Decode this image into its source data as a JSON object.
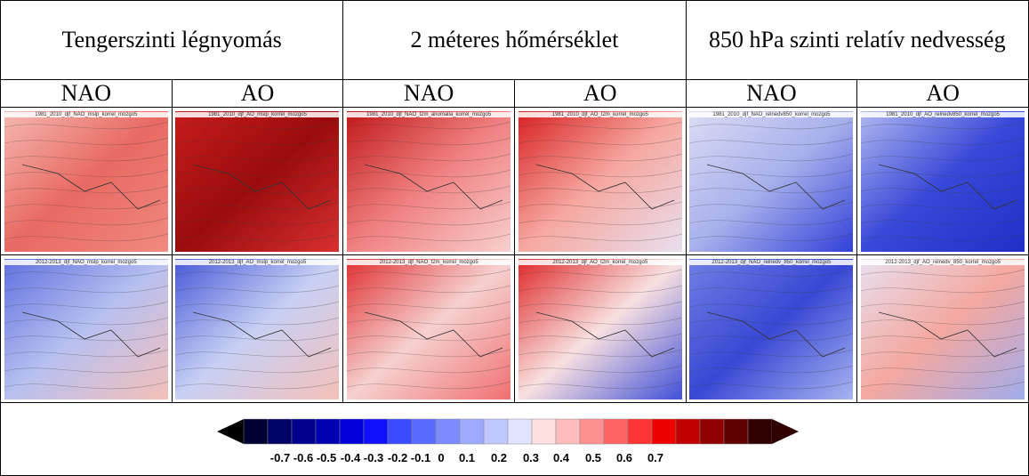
{
  "header": {
    "groups": [
      "Tengerszinti légnyomás",
      "2 méteres hőmérséklet",
      "850 hPa szinti relatív nedvesség"
    ],
    "columns": [
      "NAO",
      "AO",
      "NAO",
      "AO",
      "NAO",
      "AO"
    ]
  },
  "maps": {
    "rows": [
      [
        "1981_2010_djf_NAO_mslp_korrel_mozgo5",
        "1981_2010_djf_AO_mslp_korrel_mozgo5",
        "1981_2010_djf_NAO_t2m_anomalia_korrel_mozgo5",
        "1981_2010_djf_AO_t2m_korrel_mozgo5",
        "1981_2010_djf_NAO_relnedv850_korrel_mozgo5",
        "1981_2010_djf_AO_relnedv850_korrel_mozgo5"
      ],
      [
        "2012-2013_djf_NAO_mslp_korrel_mozgo5",
        "2012-2013_djf_AO_mslp_korrel_mozgo5",
        "2012-2013_djf_NAO_t2m_korrel_mozgo5",
        "2012-2013_djf_AO_t2m_korrel_mozgo5",
        "2012-2013_djf_NAO_relnedv_850_korrel_mozgo5",
        "2012-2013_djf_AO_relnedv_850_korrel_mozgo5"
      ]
    ]
  },
  "colorbar": {
    "ticks": [
      -0.7,
      -0.6,
      -0.5,
      -0.4,
      -0.3,
      -0.2,
      -0.1,
      0,
      0.1,
      0.2,
      0.3,
      0.4,
      0.5,
      0.6,
      0.7
    ]
  }
}
